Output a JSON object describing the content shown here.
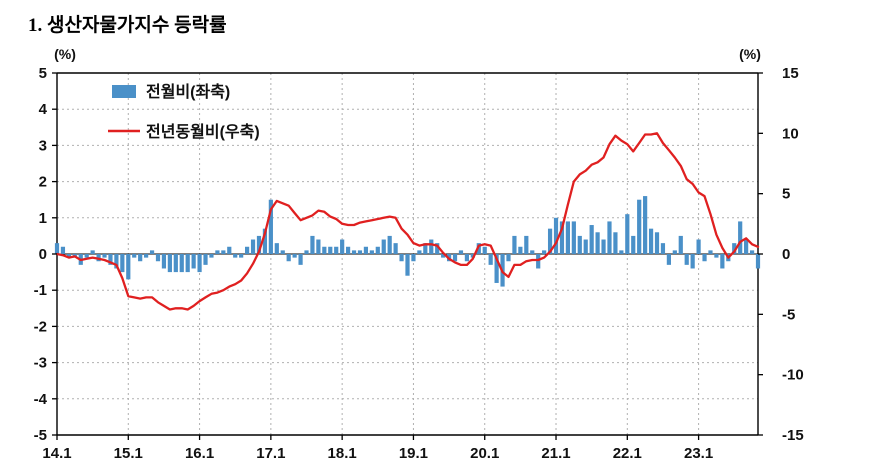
{
  "title": "1. 생산자물가지수 등락률",
  "chart_data": {
    "type": "bar",
    "note": "combo chart: monthly bars (left axis) + year-on-year line (right axis), monthly from 2014.1",
    "left_axis": {
      "unit": "(%)",
      "min": -5,
      "max": 5,
      "ticks": [
        5,
        4,
        3,
        2,
        1,
        0,
        -1,
        -2,
        -3,
        -4,
        -5
      ]
    },
    "right_axis": {
      "unit": "(%)",
      "min": -15,
      "max": 15,
      "ticks": [
        15,
        10,
        5,
        0,
        -5,
        -10,
        -15
      ]
    },
    "x_tick_labels": [
      "14.1",
      "15.1",
      "16.1",
      "17.1",
      "18.1",
      "19.1",
      "20.1",
      "21.1",
      "22.1",
      "23.1"
    ],
    "x_tick_interval": 12,
    "grid": true,
    "legend_position": "top-left",
    "series": [
      {
        "name": "전월비(좌축)",
        "kind": "bar",
        "axis": "left",
        "color": "#4a90c8",
        "values": [
          0.3,
          0.2,
          -0.1,
          -0.1,
          -0.3,
          -0.1,
          0.1,
          -0.2,
          -0.1,
          -0.3,
          -0.4,
          -0.5,
          -0.7,
          -0.1,
          -0.2,
          -0.1,
          0.1,
          -0.2,
          -0.4,
          -0.5,
          -0.5,
          -0.5,
          -0.5,
          -0.4,
          -0.5,
          -0.3,
          -0.1,
          0.1,
          0.1,
          0.2,
          -0.1,
          -0.1,
          0.2,
          0.4,
          0.5,
          0.7,
          1.5,
          0.3,
          0.1,
          -0.2,
          -0.1,
          -0.3,
          0.1,
          0.5,
          0.4,
          0.2,
          0.2,
          0.2,
          0.4,
          0.2,
          0.1,
          0.1,
          0.2,
          0.1,
          0.2,
          0.4,
          0.5,
          0.3,
          -0.2,
          -0.6,
          -0.2,
          0.1,
          0.3,
          0.4,
          0.3,
          -0.1,
          -0.2,
          -0.2,
          0.1,
          -0.2,
          -0.1,
          0.3,
          0.2,
          -0.3,
          -0.8,
          -0.9,
          -0.2,
          0.5,
          0.2,
          0.5,
          0.1,
          -0.4,
          0.1,
          0.7,
          1.0,
          0.9,
          0.9,
          0.9,
          0.5,
          0.4,
          0.8,
          0.6,
          0.4,
          0.9,
          0.6,
          0.1,
          1.1,
          0.5,
          1.5,
          1.6,
          0.7,
          0.6,
          0.3,
          -0.3,
          0.1,
          0.5,
          -0.3,
          -0.4,
          0.4,
          -0.2,
          0.1,
          -0.1,
          -0.4,
          -0.2,
          0.3,
          0.9,
          0.4,
          0.1,
          -0.4
        ]
      },
      {
        "name": "전년동월비(우축)",
        "kind": "line",
        "axis": "right",
        "color": "#e02020",
        "values": [
          0.0,
          -0.1,
          -0.3,
          -0.2,
          -0.5,
          -0.4,
          -0.3,
          -0.4,
          -0.5,
          -0.7,
          -0.9,
          -2.0,
          -3.5,
          -3.6,
          -3.7,
          -3.6,
          -3.6,
          -4.0,
          -4.3,
          -4.6,
          -4.5,
          -4.5,
          -4.6,
          -4.3,
          -3.9,
          -3.6,
          -3.3,
          -3.2,
          -3.0,
          -2.7,
          -2.5,
          -2.2,
          -1.6,
          -0.8,
          0.2,
          1.7,
          3.7,
          4.4,
          4.2,
          4.0,
          3.4,
          2.8,
          3.0,
          3.2,
          3.6,
          3.5,
          3.1,
          2.9,
          2.5,
          2.4,
          2.4,
          2.6,
          2.7,
          2.8,
          2.9,
          3.0,
          3.1,
          3.0,
          2.1,
          1.6,
          0.9,
          0.7,
          0.8,
          0.8,
          0.7,
          0.1,
          -0.4,
          -0.7,
          -0.9,
          -0.9,
          -0.4,
          0.7,
          0.8,
          0.7,
          -0.4,
          -1.5,
          -1.9,
          -0.9,
          -0.9,
          -0.6,
          -0.5,
          -0.5,
          -0.3,
          0.2,
          0.9,
          2.1,
          4.1,
          6.0,
          6.6,
          6.9,
          7.4,
          7.6,
          8.0,
          9.1,
          9.8,
          9.4,
          9.1,
          8.5,
          9.2,
          9.9,
          9.9,
          10.0,
          9.2,
          8.6,
          8.0,
          7.3,
          6.2,
          5.8,
          5.1,
          4.8,
          3.3,
          1.6,
          0.5,
          -0.3,
          0.2,
          1.0,
          1.3,
          0.8,
          0.6
        ]
      }
    ]
  },
  "colors": {
    "bar": "#4a90c8",
    "line": "#e02020",
    "grid": "#b0b0b0",
    "axis": "#000000"
  }
}
